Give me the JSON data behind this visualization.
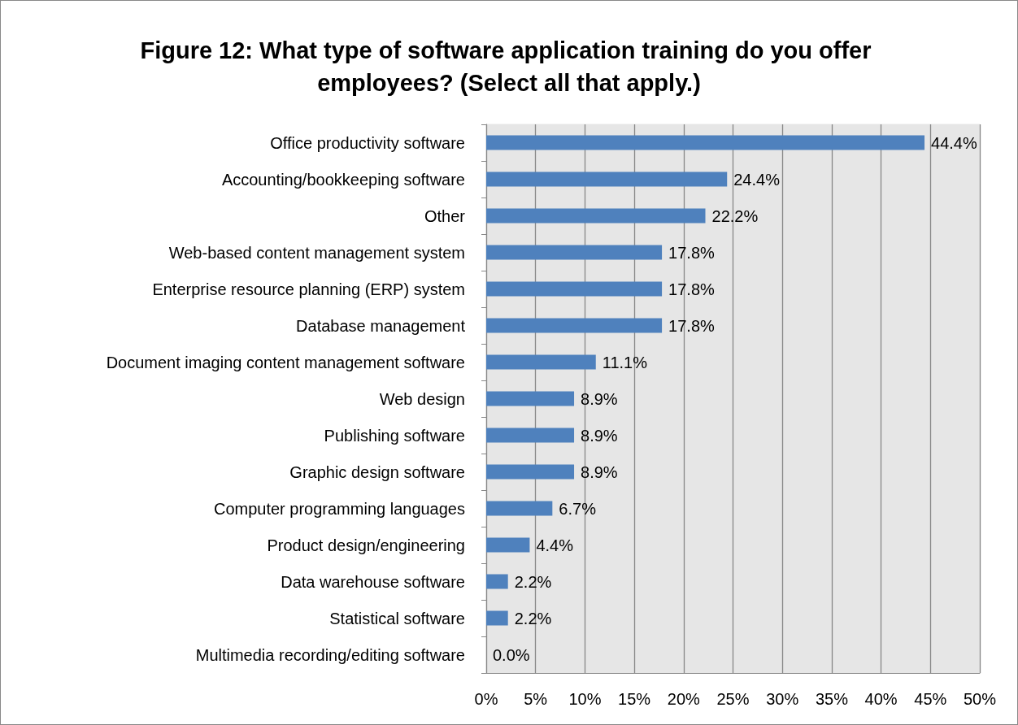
{
  "chart_data": {
    "type": "bar",
    "orientation": "horizontal",
    "title": "Figure 12: What type of software application training do you offer employees? (Select all that apply.)",
    "categories": [
      "Office productivity software",
      "Accounting/bookkeeping software",
      "Other",
      "Web-based content management system",
      "Enterprise resource planning (ERP) system",
      "Database management",
      "Document imaging content management software",
      "Web design",
      "Publishing software",
      "Graphic design software",
      "Computer programming languages",
      "Product design/engineering",
      "Data warehouse software",
      "Statistical software",
      "Multimedia recording/editing software"
    ],
    "values": [
      44.4,
      24.4,
      22.2,
      17.8,
      17.8,
      17.8,
      11.1,
      8.9,
      8.9,
      8.9,
      6.7,
      4.4,
      2.2,
      2.2,
      0.0
    ],
    "value_labels": [
      "44.4%",
      "24.4%",
      "22.2%",
      "17.8%",
      "17.8%",
      "17.8%",
      "11.1%",
      "8.9%",
      "8.9%",
      "8.9%",
      "6.7%",
      "4.4%",
      "2.2%",
      "2.2%",
      "0.0%"
    ],
    "color": "#4f81bd",
    "xlim": [
      0,
      50
    ],
    "xticks": [
      {
        "value": 0,
        "label": "0%"
      },
      {
        "value": 5,
        "label": "5%"
      },
      {
        "value": 10,
        "label": "10%"
      },
      {
        "value": 15,
        "label": "15%"
      },
      {
        "value": 20,
        "label": "20%"
      },
      {
        "value": 25,
        "label": "25%"
      },
      {
        "value": 30,
        "label": "30%"
      },
      {
        "value": 35,
        "label": "35%"
      },
      {
        "value": 40,
        "label": "40%"
      },
      {
        "value": 45,
        "label": "45%"
      },
      {
        "value": 50,
        "label": "50%"
      }
    ],
    "grid": "x"
  }
}
